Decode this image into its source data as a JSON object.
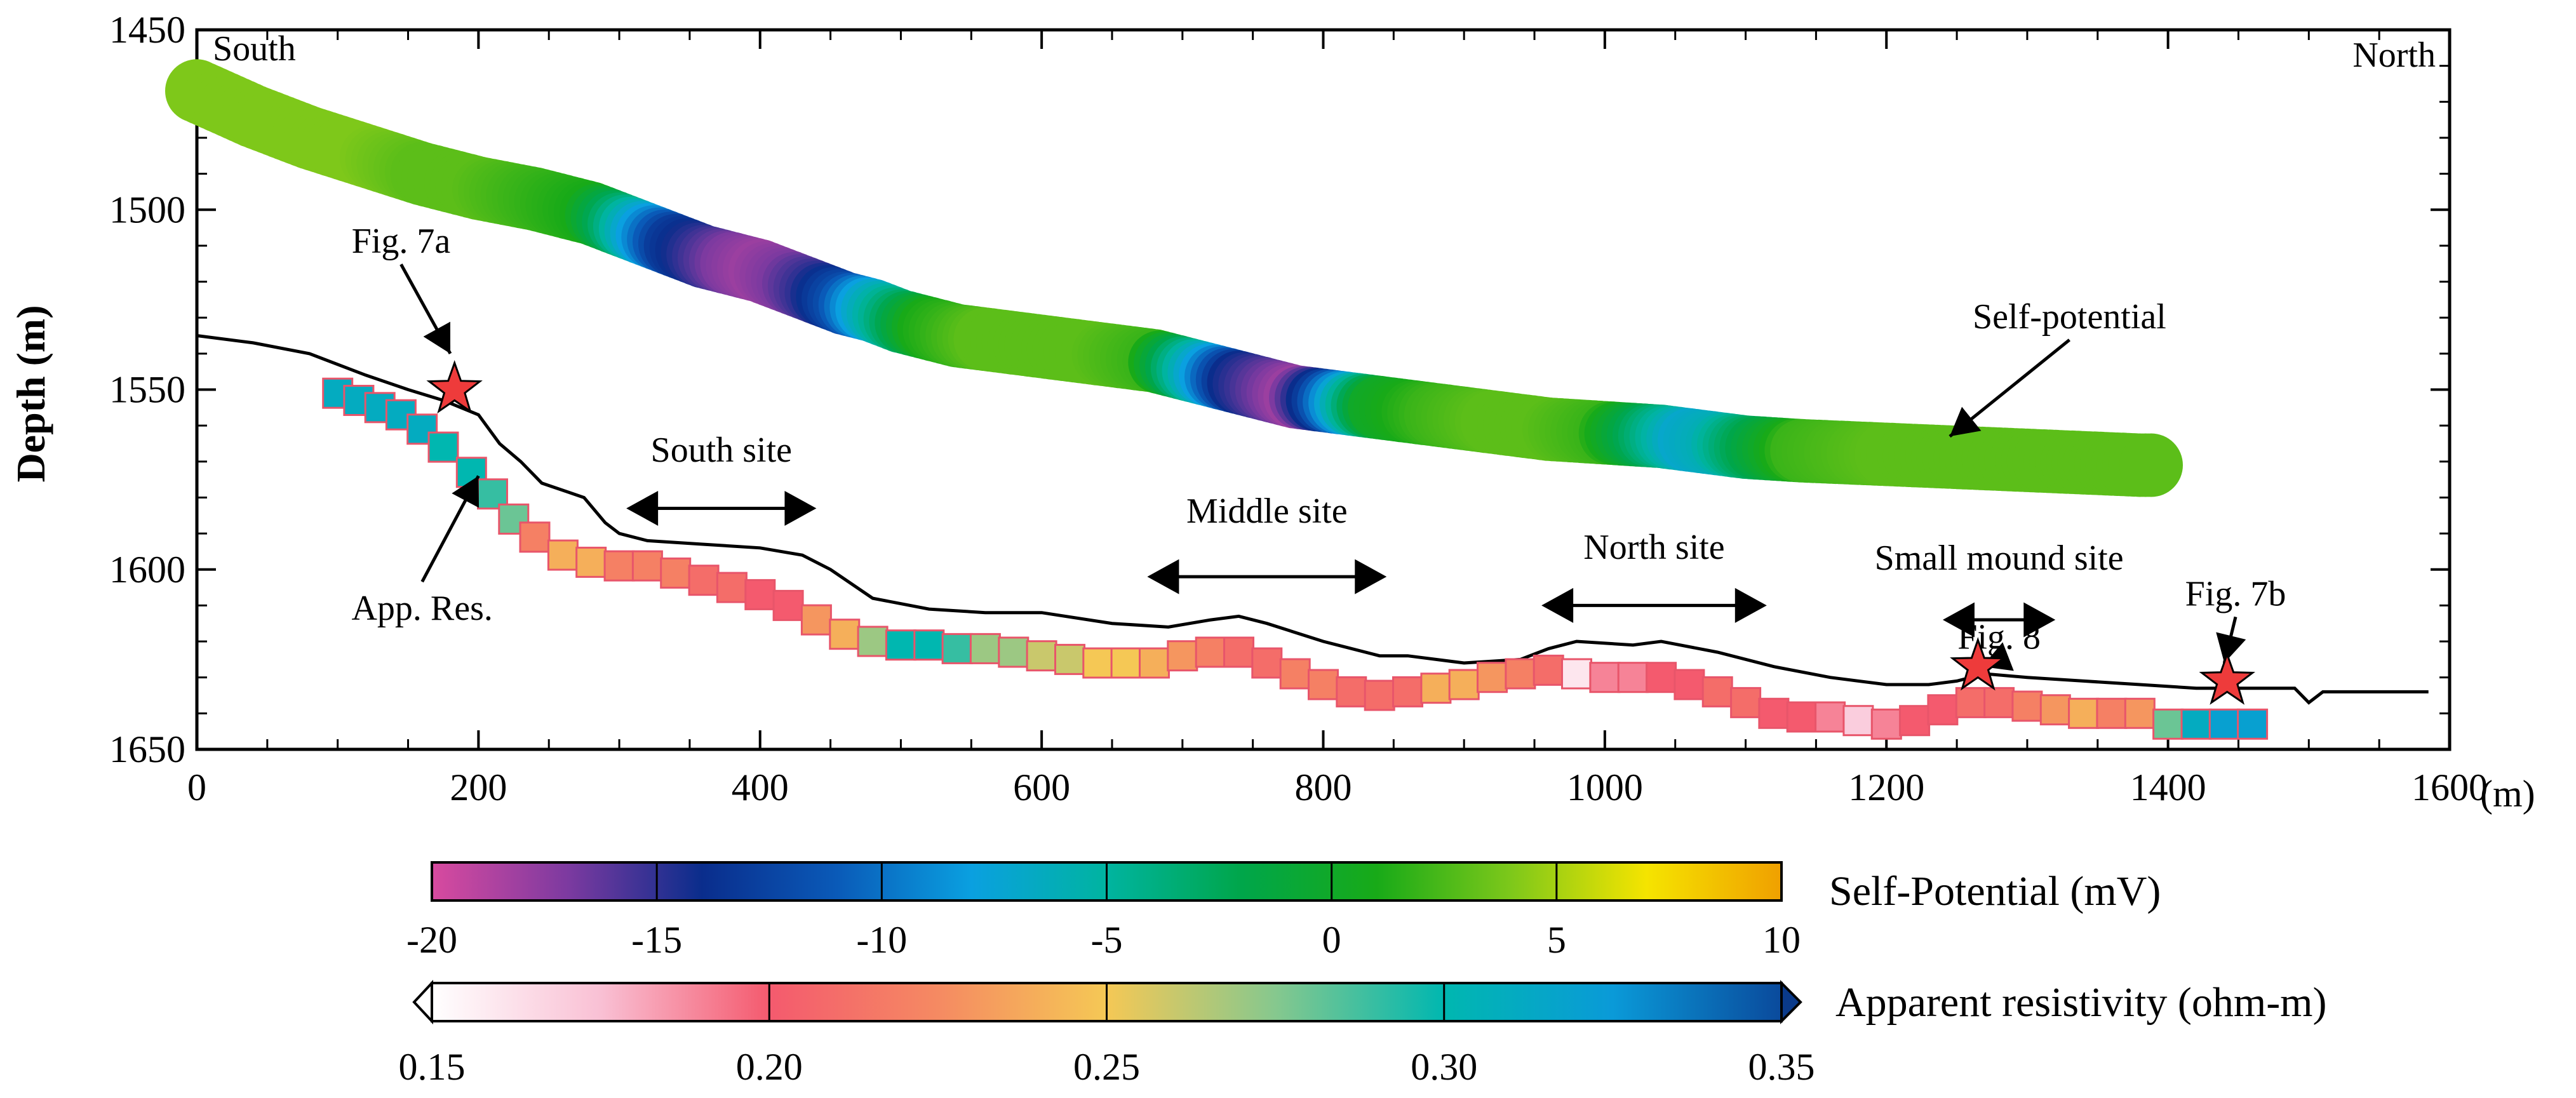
{
  "chart_data": {
    "type": "scatter",
    "ylabel": "Depth (m)",
    "xunit": "(m)",
    "xlim": [
      0,
      1600
    ],
    "ylim": [
      1650,
      1450
    ],
    "xticks": [
      0,
      200,
      400,
      600,
      800,
      1000,
      1200,
      1400,
      1600
    ],
    "yticks": [
      1450,
      1500,
      1550,
      1600,
      1650
    ],
    "corner_labels": {
      "left": "South",
      "right": "North"
    },
    "seafloor_profile": {
      "x": [
        0,
        40,
        80,
        120,
        150,
        175,
        200,
        215,
        230,
        245,
        260,
        275,
        290,
        300,
        320,
        360,
        400,
        430,
        450,
        480,
        520,
        560,
        600,
        650,
        690,
        720,
        740,
        760,
        800,
        840,
        860,
        900,
        940,
        960,
        980,
        1020,
        1040,
        1080,
        1120,
        1160,
        1200,
        1230,
        1250,
        1270,
        1300,
        1340,
        1380,
        1420,
        1460,
        1490,
        1500,
        1510,
        1540,
        1585
      ],
      "y": [
        1535,
        1537,
        1540,
        1546,
        1550,
        1553,
        1557,
        1565,
        1570,
        1576,
        1578,
        1580,
        1587,
        1590,
        1592,
        1593,
        1594,
        1596,
        1600,
        1608,
        1611,
        1612,
        1612,
        1615,
        1616,
        1614,
        1613,
        1615,
        1620,
        1624,
        1624,
        1626,
        1625,
        1622,
        1620,
        1621,
        1620,
        1623,
        1627,
        1630,
        1632,
        1632,
        1631,
        1629,
        1630,
        1631,
        1632,
        1633,
        1633,
        1633,
        1637,
        1634,
        1634,
        1634
      ]
    },
    "series": [
      {
        "name": "Self-potential",
        "x": [
          0,
          40,
          80,
          120,
          160,
          200,
          240,
          280,
          300,
          320,
          340,
          360,
          380,
          400,
          420,
          440,
          460,
          480,
          500,
          520,
          540,
          560,
          600,
          640,
          680,
          700,
          720,
          740,
          760,
          780,
          800,
          820,
          840,
          880,
          920,
          960,
          1000,
          1040,
          1060,
          1080,
          1100,
          1140,
          1200,
          1260,
          1320,
          1380,
          1390
        ],
        "y": [
          1467,
          1474,
          1480,
          1485,
          1490,
          1494,
          1497,
          1501,
          1504,
          1507,
          1510,
          1513,
          1515,
          1517,
          1520,
          1523,
          1526,
          1528,
          1531,
          1533,
          1535,
          1536,
          1538,
          1540,
          1542,
          1544,
          1546,
          1548,
          1550,
          1552,
          1553,
          1554,
          1555,
          1557,
          1559,
          1561,
          1562,
          1563,
          1564,
          1565,
          1566,
          1567,
          1568,
          1569,
          1570,
          1571,
          1571
        ],
        "values": [
          4,
          4,
          4,
          4,
          3,
          3,
          2,
          1,
          -3,
          -8,
          -13,
          -15,
          -17,
          -18,
          -17,
          -15,
          -12,
          -7,
          -3,
          1,
          2,
          3,
          3,
          3,
          2,
          -3,
          -8,
          -14,
          -16,
          -18,
          -13,
          -6,
          0,
          2,
          3,
          3,
          2,
          -4,
          -7,
          -6,
          -3,
          2,
          3,
          3,
          3,
          3,
          3
        ]
      },
      {
        "name": "App. Res.",
        "x": [
          100,
          115,
          130,
          145,
          160,
          175,
          195,
          210,
          225,
          240,
          260,
          280,
          300,
          320,
          340,
          360,
          380,
          400,
          420,
          440,
          460,
          480,
          500,
          520,
          540,
          560,
          580,
          600,
          620,
          640,
          660,
          680,
          700,
          720,
          740,
          760,
          780,
          800,
          820,
          840,
          860,
          880,
          900,
          920,
          940,
          960,
          980,
          1000,
          1020,
          1040,
          1060,
          1080,
          1100,
          1120,
          1140,
          1160,
          1180,
          1200,
          1220,
          1240,
          1260,
          1280,
          1300,
          1320,
          1340,
          1360,
          1380,
          1400,
          1420,
          1440,
          1460
        ],
        "y": [
          1551,
          1553,
          1555,
          1557,
          1561,
          1566,
          1573,
          1579,
          1586,
          1591,
          1596,
          1598,
          1599,
          1599,
          1601,
          1603,
          1605,
          1607,
          1610,
          1614,
          1618,
          1620,
          1621,
          1621,
          1622,
          1622,
          1623,
          1624,
          1625,
          1626,
          1626,
          1626,
          1624,
          1623,
          1623,
          1626,
          1629,
          1632,
          1634,
          1635,
          1634,
          1633,
          1632,
          1630,
          1629,
          1628,
          1629,
          1630,
          1630,
          1630,
          1632,
          1634,
          1637,
          1640,
          1641,
          1641,
          1642,
          1643,
          1642,
          1639,
          1637,
          1637,
          1638,
          1639,
          1640,
          1640,
          1640,
          1643,
          1643,
          1643,
          1643
        ],
        "values": [
          0.31,
          0.31,
          0.31,
          0.31,
          0.31,
          0.3,
          0.3,
          0.29,
          0.28,
          0.22,
          0.24,
          0.24,
          0.22,
          0.22,
          0.22,
          0.21,
          0.21,
          0.2,
          0.2,
          0.23,
          0.24,
          0.27,
          0.3,
          0.3,
          0.29,
          0.27,
          0.27,
          0.26,
          0.26,
          0.25,
          0.25,
          0.24,
          0.23,
          0.22,
          0.21,
          0.21,
          0.22,
          0.22,
          0.21,
          0.21,
          0.21,
          0.24,
          0.24,
          0.23,
          0.22,
          0.21,
          0.16,
          0.19,
          0.19,
          0.2,
          0.2,
          0.21,
          0.21,
          0.2,
          0.2,
          0.19,
          0.17,
          0.19,
          0.2,
          0.2,
          0.21,
          0.21,
          0.22,
          0.23,
          0.24,
          0.22,
          0.23,
          0.28,
          0.31,
          0.32,
          0.32
        ]
      }
    ],
    "stars": [
      {
        "label": "Fig. 7a",
        "x": 183,
        "y": 1550
      },
      {
        "label": "Fig. 8",
        "x": 1265,
        "y": 1627
      },
      {
        "label": "Fig. 7b",
        "x": 1442,
        "y": 1631
      }
    ],
    "annotations": [
      {
        "text": "South site",
        "kind": "span",
        "x_from": 305,
        "x_to": 440,
        "y": 1583,
        "text_y": 1570
      },
      {
        "text": "Middle site",
        "kind": "span",
        "x_from": 675,
        "x_to": 845,
        "y": 1602,
        "text_y": 1587
      },
      {
        "text": "North site",
        "kind": "span",
        "x_from": 955,
        "x_to": 1115,
        "y": 1610,
        "text_y": 1597
      },
      {
        "text": "Small mound site",
        "kind": "span",
        "x_from": 1240,
        "x_to": 1320,
        "y": 1614,
        "text_y": 1600
      },
      {
        "text": "Self-potential",
        "kind": "pointer",
        "x": 1330,
        "y": 1533,
        "to_x": 1245,
        "to_y": 1563
      },
      {
        "text": "App. Res.",
        "kind": "pointer",
        "x": 160,
        "y": 1614,
        "to_x": 200,
        "to_y": 1574
      },
      {
        "text": "Fig. 7a",
        "kind": "pointer",
        "x": 145,
        "y": 1512,
        "to_x": 180,
        "to_y": 1540
      },
      {
        "text": "Fig. 8",
        "kind": "pointer",
        "x": 1280,
        "y": 1622,
        "to_x": 1268,
        "to_y": 1627
      },
      {
        "text": "Fig. 7b",
        "kind": "pointer",
        "x": 1448,
        "y": 1610,
        "to_x": 1440,
        "to_y": 1626
      }
    ],
    "colorbars": [
      {
        "label": "Self-Potential (mV)",
        "range": [
          -20,
          10
        ],
        "ticks": [
          "-20",
          "-15",
          "-10",
          "-5",
          "0",
          "5",
          "10"
        ],
        "colors": [
          "#d84a9f",
          "#7d3aa0",
          "#0a2d8c",
          "#0a5ab8",
          "#0aa0e0",
          "#00b4a0",
          "#00a64a",
          "#18aa18",
          "#7ec81a",
          "#f5e400",
          "#f0a000"
        ]
      },
      {
        "label": "Apparent resistivity (ohm-m)",
        "range": [
          0.15,
          0.35
        ],
        "ticks": [
          "0.15",
          "0.20",
          "0.25",
          "0.30",
          "0.35"
        ],
        "colors": [
          "#ffffff",
          "#f9c0d4",
          "#f45a6e",
          "#f58a62",
          "#f5c855",
          "#86c88e",
          "#00b7b0",
          "#0a9ad8",
          "#0a4a9c"
        ]
      }
    ]
  }
}
